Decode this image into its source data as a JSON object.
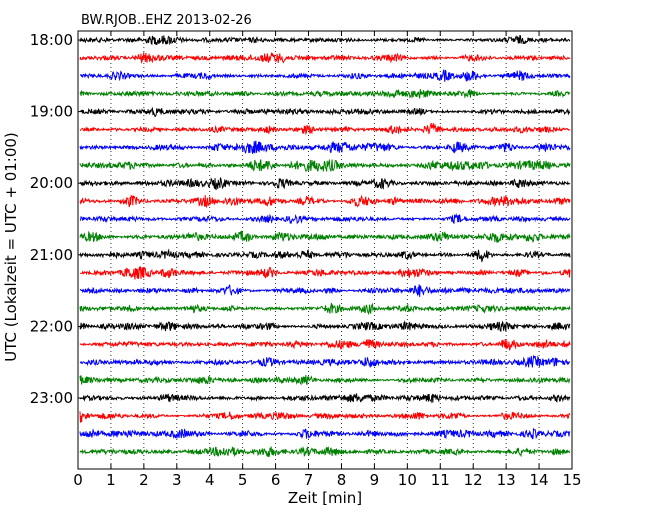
{
  "chart_data": {
    "type": "line",
    "title": "BW.RJOB..EHZ 2013-02-26",
    "xlabel": "Zeit  [min]",
    "ylabel": "UTC (Lokalzeit = UTC + 01:00)",
    "xlim": [
      0,
      15
    ],
    "x_ticks": [
      "0",
      "1",
      "2",
      "3",
      "4",
      "5",
      "6",
      "7",
      "8",
      "9",
      "10",
      "11",
      "12",
      "13",
      "14",
      "15"
    ],
    "y_ticks": [
      "18:00",
      "19:00",
      "20:00",
      "21:00",
      "22:00",
      "23:00"
    ],
    "trace_interval_minutes": 15,
    "start_time": "18:00",
    "trace_colors": [
      "#000000",
      "#ff0000",
      "#0000ff",
      "#008000"
    ],
    "grid": "vertical dotted",
    "series": [
      {
        "label": "18:00",
        "color": "#000000"
      },
      {
        "label": "18:15",
        "color": "#ff0000"
      },
      {
        "label": "18:30",
        "color": "#0000ff"
      },
      {
        "label": "18:45",
        "color": "#008000"
      },
      {
        "label": "19:00",
        "color": "#000000"
      },
      {
        "label": "19:15",
        "color": "#ff0000"
      },
      {
        "label": "19:30",
        "color": "#0000ff"
      },
      {
        "label": "19:45",
        "color": "#008000"
      },
      {
        "label": "20:00",
        "color": "#000000"
      },
      {
        "label": "20:15",
        "color": "#ff0000"
      },
      {
        "label": "20:30",
        "color": "#0000ff"
      },
      {
        "label": "20:45",
        "color": "#008000"
      },
      {
        "label": "21:00",
        "color": "#000000"
      },
      {
        "label": "21:15",
        "color": "#ff0000"
      },
      {
        "label": "21:30",
        "color": "#0000ff"
      },
      {
        "label": "21:45",
        "color": "#008000"
      },
      {
        "label": "22:00",
        "color": "#000000"
      },
      {
        "label": "22:15",
        "color": "#ff0000"
      },
      {
        "label": "22:30",
        "color": "#0000ff"
      },
      {
        "label": "22:45",
        "color": "#008000"
      },
      {
        "label": "23:00",
        "color": "#000000"
      },
      {
        "label": "23:15",
        "color": "#ff0000"
      },
      {
        "label": "23:30",
        "color": "#0000ff"
      },
      {
        "label": "23:45",
        "color": "#008000"
      }
    ]
  }
}
